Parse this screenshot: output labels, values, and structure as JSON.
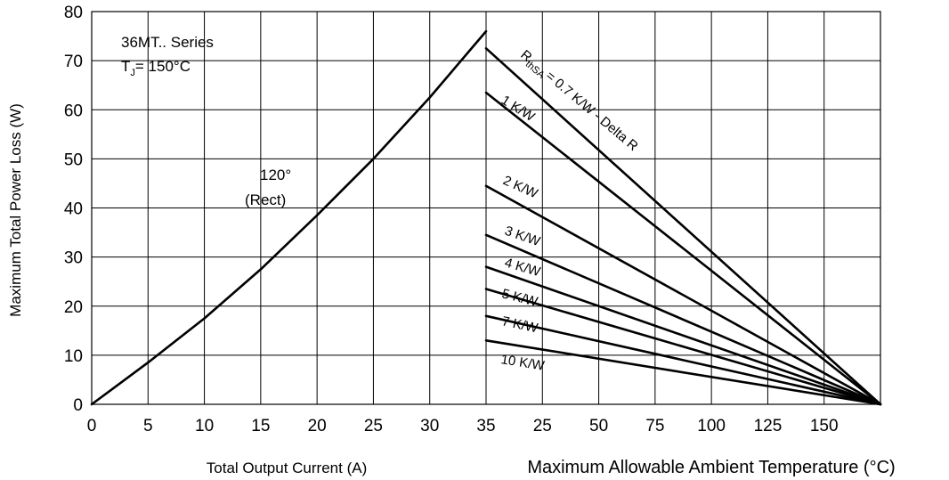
{
  "chart_data": {
    "type": "line",
    "ylabel": "Maximum Total Power Loss (W)",
    "ylim": [
      0,
      80
    ],
    "yticks": [
      "0",
      "10",
      "20",
      "30",
      "40",
      "50",
      "60",
      "70",
      "80"
    ],
    "grid": true,
    "left_panel": {
      "xlabel": "Total Output Current (A)",
      "xlim": [
        0,
        35
      ],
      "xticks": [
        "0",
        "5",
        "10",
        "15",
        "20",
        "25",
        "30",
        "35"
      ],
      "series": [
        {
          "name": "120° (Rect)",
          "x": [
            0,
            5,
            10,
            15,
            20,
            25,
            30,
            35
          ],
          "y": [
            0,
            8.5,
            17.5,
            27.5,
            38.5,
            50,
            62.5,
            76
          ]
        }
      ],
      "annotations": {
        "device": "36MT.. Series",
        "tj_prefix": "T",
        "tj_sub": "J",
        "tj_rest": "= 150°C",
        "curve_line1": "120°",
        "curve_line2": "(Rect)"
      }
    },
    "right_panel": {
      "xlabel": "Maximum Allowable Ambient Temperature (°C)",
      "xlim": [
        25,
        150
      ],
      "xticks": [
        "35",
        "25",
        "50",
        "75",
        "100",
        "125",
        "150"
      ],
      "series": [
        {
          "name": "0.7 K/W - Delta R",
          "x": [
            35,
            150
          ],
          "y": [
            72.5,
            0
          ]
        },
        {
          "name": "1 K/W",
          "x": [
            35,
            150
          ],
          "y": [
            63.5,
            0
          ]
        },
        {
          "name": "2 K/W",
          "x": [
            35,
            150
          ],
          "y": [
            44.5,
            0
          ]
        },
        {
          "name": "3 K/W",
          "x": [
            35,
            150
          ],
          "y": [
            34.5,
            0
          ]
        },
        {
          "name": "4 K/W",
          "x": [
            35,
            150
          ],
          "y": [
            28,
            0
          ]
        },
        {
          "name": "5 K/W",
          "x": [
            35,
            150
          ],
          "y": [
            23.5,
            0
          ]
        },
        {
          "name": "7 K/W",
          "x": [
            35,
            150
          ],
          "y": [
            18,
            0
          ]
        },
        {
          "name": "10 K/W",
          "x": [
            35,
            150
          ],
          "y": [
            13,
            0
          ]
        }
      ],
      "labels": {
        "rth_prefix": "R",
        "rth_sub": "thSA",
        "rth_rest": "= 0.7 K/W - Delta R",
        "k1": "1 K/W",
        "k2": "2 K/W",
        "k3": "3 K/W",
        "k4": "4 K/W",
        "k5": "5 K/W",
        "k7": "7 K/W",
        "k10": "10 K/W"
      }
    }
  }
}
